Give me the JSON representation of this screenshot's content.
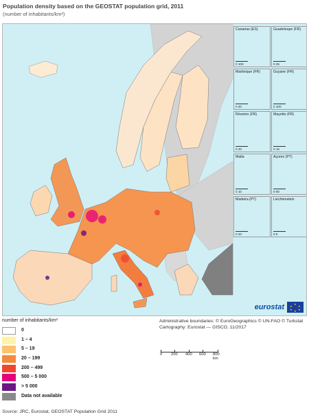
{
  "title": "Population density based on the GEOSTAT population grid, 2011",
  "subtitle": "(number of inhabitants/km²)",
  "insets": [
    {
      "name": "Canarias (ES)",
      "scale": "0  100"
    },
    {
      "name": "Guadeloupe (FR)",
      "scale": "0  25"
    },
    {
      "name": "Martinique (FR)",
      "scale": "0  20"
    },
    {
      "name": "Guyane (FR)",
      "scale": "0  100"
    },
    {
      "name": "Réunion (FR)",
      "scale": "0  20"
    },
    {
      "name": "Mayotte (FR)",
      "scale": "0  15"
    },
    {
      "name": "Malta",
      "scale": "0  10"
    },
    {
      "name": "Açores (PT)",
      "scale": "0  50"
    },
    {
      "name": "Madeira (PT)",
      "scale": "0  20"
    },
    {
      "name": "Liechtenstein",
      "scale": "0  5"
    }
  ],
  "brand": "eurostat",
  "legend": {
    "title": "number of inhabitants/km²",
    "items": [
      {
        "label": "0",
        "color": "#ffffff"
      },
      {
        "label": "1 – 4",
        "color": "#fff3a8"
      },
      {
        "label": "5 – 19",
        "color": "#fdc26b"
      },
      {
        "label": "20 – 199",
        "color": "#f58a3c"
      },
      {
        "label": "200 – 499",
        "color": "#f0462e"
      },
      {
        "label": "500 – 5 000",
        "color": "#e4007d"
      },
      {
        "label": "> 5 000",
        "color": "#6b1786"
      },
      {
        "label": "Data not available",
        "color": "#8a8a8a"
      }
    ]
  },
  "credits": {
    "line1": "Administrative boundaries: © EuroGeographics © UN-FAO © Turkstat",
    "line2": "Cartography: Eurostat — GISCO, 11/2017"
  },
  "scalebar": {
    "ticks": [
      "0",
      "200",
      "400",
      "600",
      "800 km"
    ]
  },
  "source": {
    "prefix": "Source:",
    "text": " JRC, Eurostat, GEOSTAT Population Grid 2011"
  },
  "colors": {
    "sea": "#cfeff5",
    "nonEU": "#d3d3d3",
    "noData": "#808080"
  }
}
